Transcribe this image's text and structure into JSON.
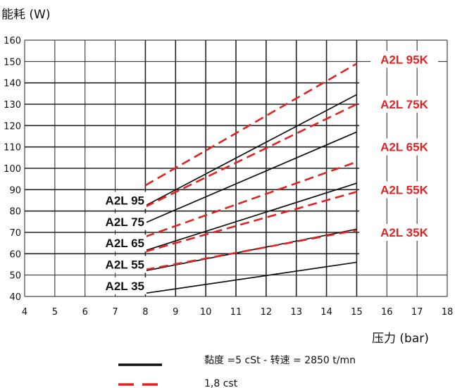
{
  "chart_data": {
    "type": "line",
    "ylabel": "能耗 (W)",
    "xlabel": "压力  (bar)",
    "xlim": [
      4,
      18
    ],
    "ylim": [
      40,
      160
    ],
    "x_ticks": [
      "4",
      "5",
      "6",
      "7",
      "8",
      "9",
      "10",
      "11",
      "12",
      "13",
      "14",
      "15",
      "16",
      "17",
      "18"
    ],
    "y_ticks": [
      "40",
      "50",
      "60",
      "70",
      "80",
      "90",
      "100",
      "110",
      "120",
      "130",
      "140",
      "150",
      "160"
    ],
    "grid": true,
    "series": [
      {
        "name": "A2L 35",
        "group": "5 cSt",
        "x": [
          8,
          15
        ],
        "y": [
          41.5,
          56
        ]
      },
      {
        "name": "A2L 55",
        "group": "5 cSt",
        "x": [
          8,
          15
        ],
        "y": [
          52,
          71.5
        ]
      },
      {
        "name": "A2L 65",
        "group": "5 cSt",
        "x": [
          8,
          15
        ],
        "y": [
          61.5,
          93
        ]
      },
      {
        "name": "A2L 75",
        "group": "5 cSt",
        "x": [
          8,
          15
        ],
        "y": [
          74.5,
          117
        ]
      },
      {
        "name": "A2L 95",
        "group": "5 cSt",
        "x": [
          8,
          15
        ],
        "y": [
          82.5,
          134.5
        ]
      },
      {
        "name": "A2L 35K",
        "group": "1,8 cst",
        "x": [
          8,
          15
        ],
        "y": [
          52.5,
          71
        ]
      },
      {
        "name": "A2L 55K",
        "group": "1,8 cst",
        "x": [
          8,
          15
        ],
        "y": [
          61,
          89
        ]
      },
      {
        "name": "A2L 65K",
        "group": "1,8 cst",
        "x": [
          8,
          15
        ],
        "y": [
          68,
          103
        ]
      },
      {
        "name": "A2L 75K",
        "group": "1,8 cst",
        "x": [
          8,
          15
        ],
        "y": [
          82,
          130
        ]
      },
      {
        "name": "A2L 95K",
        "group": "1,8 cst",
        "x": [
          8,
          15
        ],
        "y": [
          92,
          149
        ]
      }
    ],
    "left_labels": [
      "A2L 95",
      "A2L 75",
      "A2L 65",
      "A2L 55",
      "A2L 35"
    ],
    "right_labels": [
      "A2L 95K",
      "A2L 75K",
      "A2L 65K",
      "A2L 55K",
      "A2L 35K"
    ],
    "legend": {
      "solid_text": "黏度  =5 cSt  - 转速 = 2850 t/mn",
      "dashed_text": "1,8  cst"
    },
    "colors": {
      "solid": "#111111",
      "dashed": "#e02424",
      "grid": "#222222"
    }
  }
}
